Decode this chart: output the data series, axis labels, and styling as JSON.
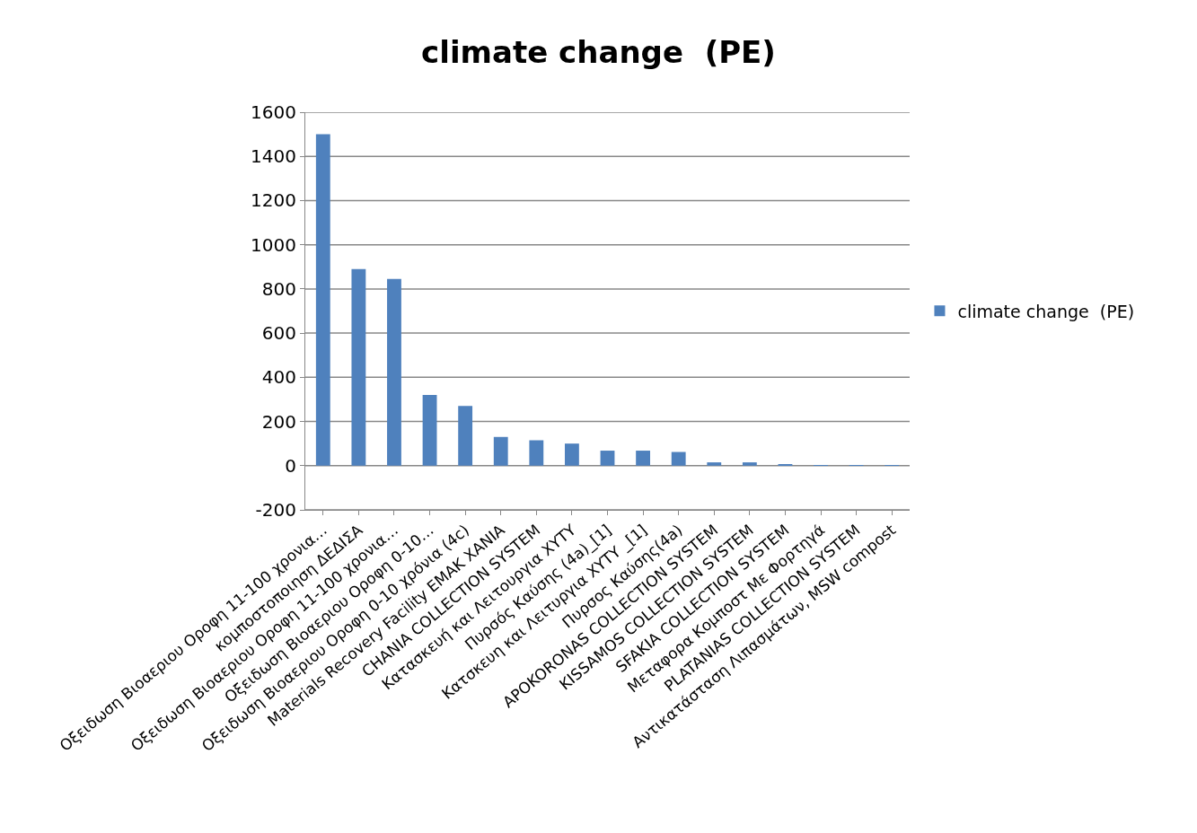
{
  "chart_data": {
    "type": "bar",
    "title": "climate change  (PE)",
    "categories": [
      "Οξειδωση Βιοαεριου Οροφη 11-100 χρονια…",
      "κομποστοποιηση ΔΕΔΙΣΑ",
      "Οξειδωση Βιοαεριου Οροφη 11-100 χρονια…",
      "Οξειδωση Βιοαεριου Οροφη 0-10…",
      "Οξειδωση Βιοαεριου Οροφη 0-10 χρόνια (4c)",
      "Materials Recovery Facility EMAK XANIA",
      "CHANIA COLLECTION SYSTEM",
      "Κατασκευή και Λειτουργια XYTY",
      "Πυρσός Καύσης (4a)_[1]",
      "Κατσκευη και Λειτυργια XYTY _[1]",
      "Πυρσος Καύσης(4a)",
      "APOKORONAS COLLECTION SYSTEM",
      "KISSAMOS COLLECTION SYSTEM",
      "SFAKIA COLLECTION SYSTEM",
      "Μεταφορα Κομποστ Με Φορτηγά",
      "PLATANIAS COLLECTION SYSTEM",
      "Αντικατάσταση Λιπασμάτων, MSW compost"
    ],
    "series": [
      {
        "name": "climate change  (PE)",
        "color": "#4f81bd",
        "values": [
          1500,
          890,
          845,
          320,
          270,
          130,
          115,
          100,
          68,
          68,
          62,
          15,
          15,
          5,
          3,
          2,
          2
        ]
      }
    ],
    "ylim": [
      -200,
      1600
    ],
    "yticks": [
      -200,
      0,
      200,
      400,
      600,
      800,
      1000,
      1200,
      1400,
      1600
    ],
    "grid": "y",
    "legend": "right"
  }
}
